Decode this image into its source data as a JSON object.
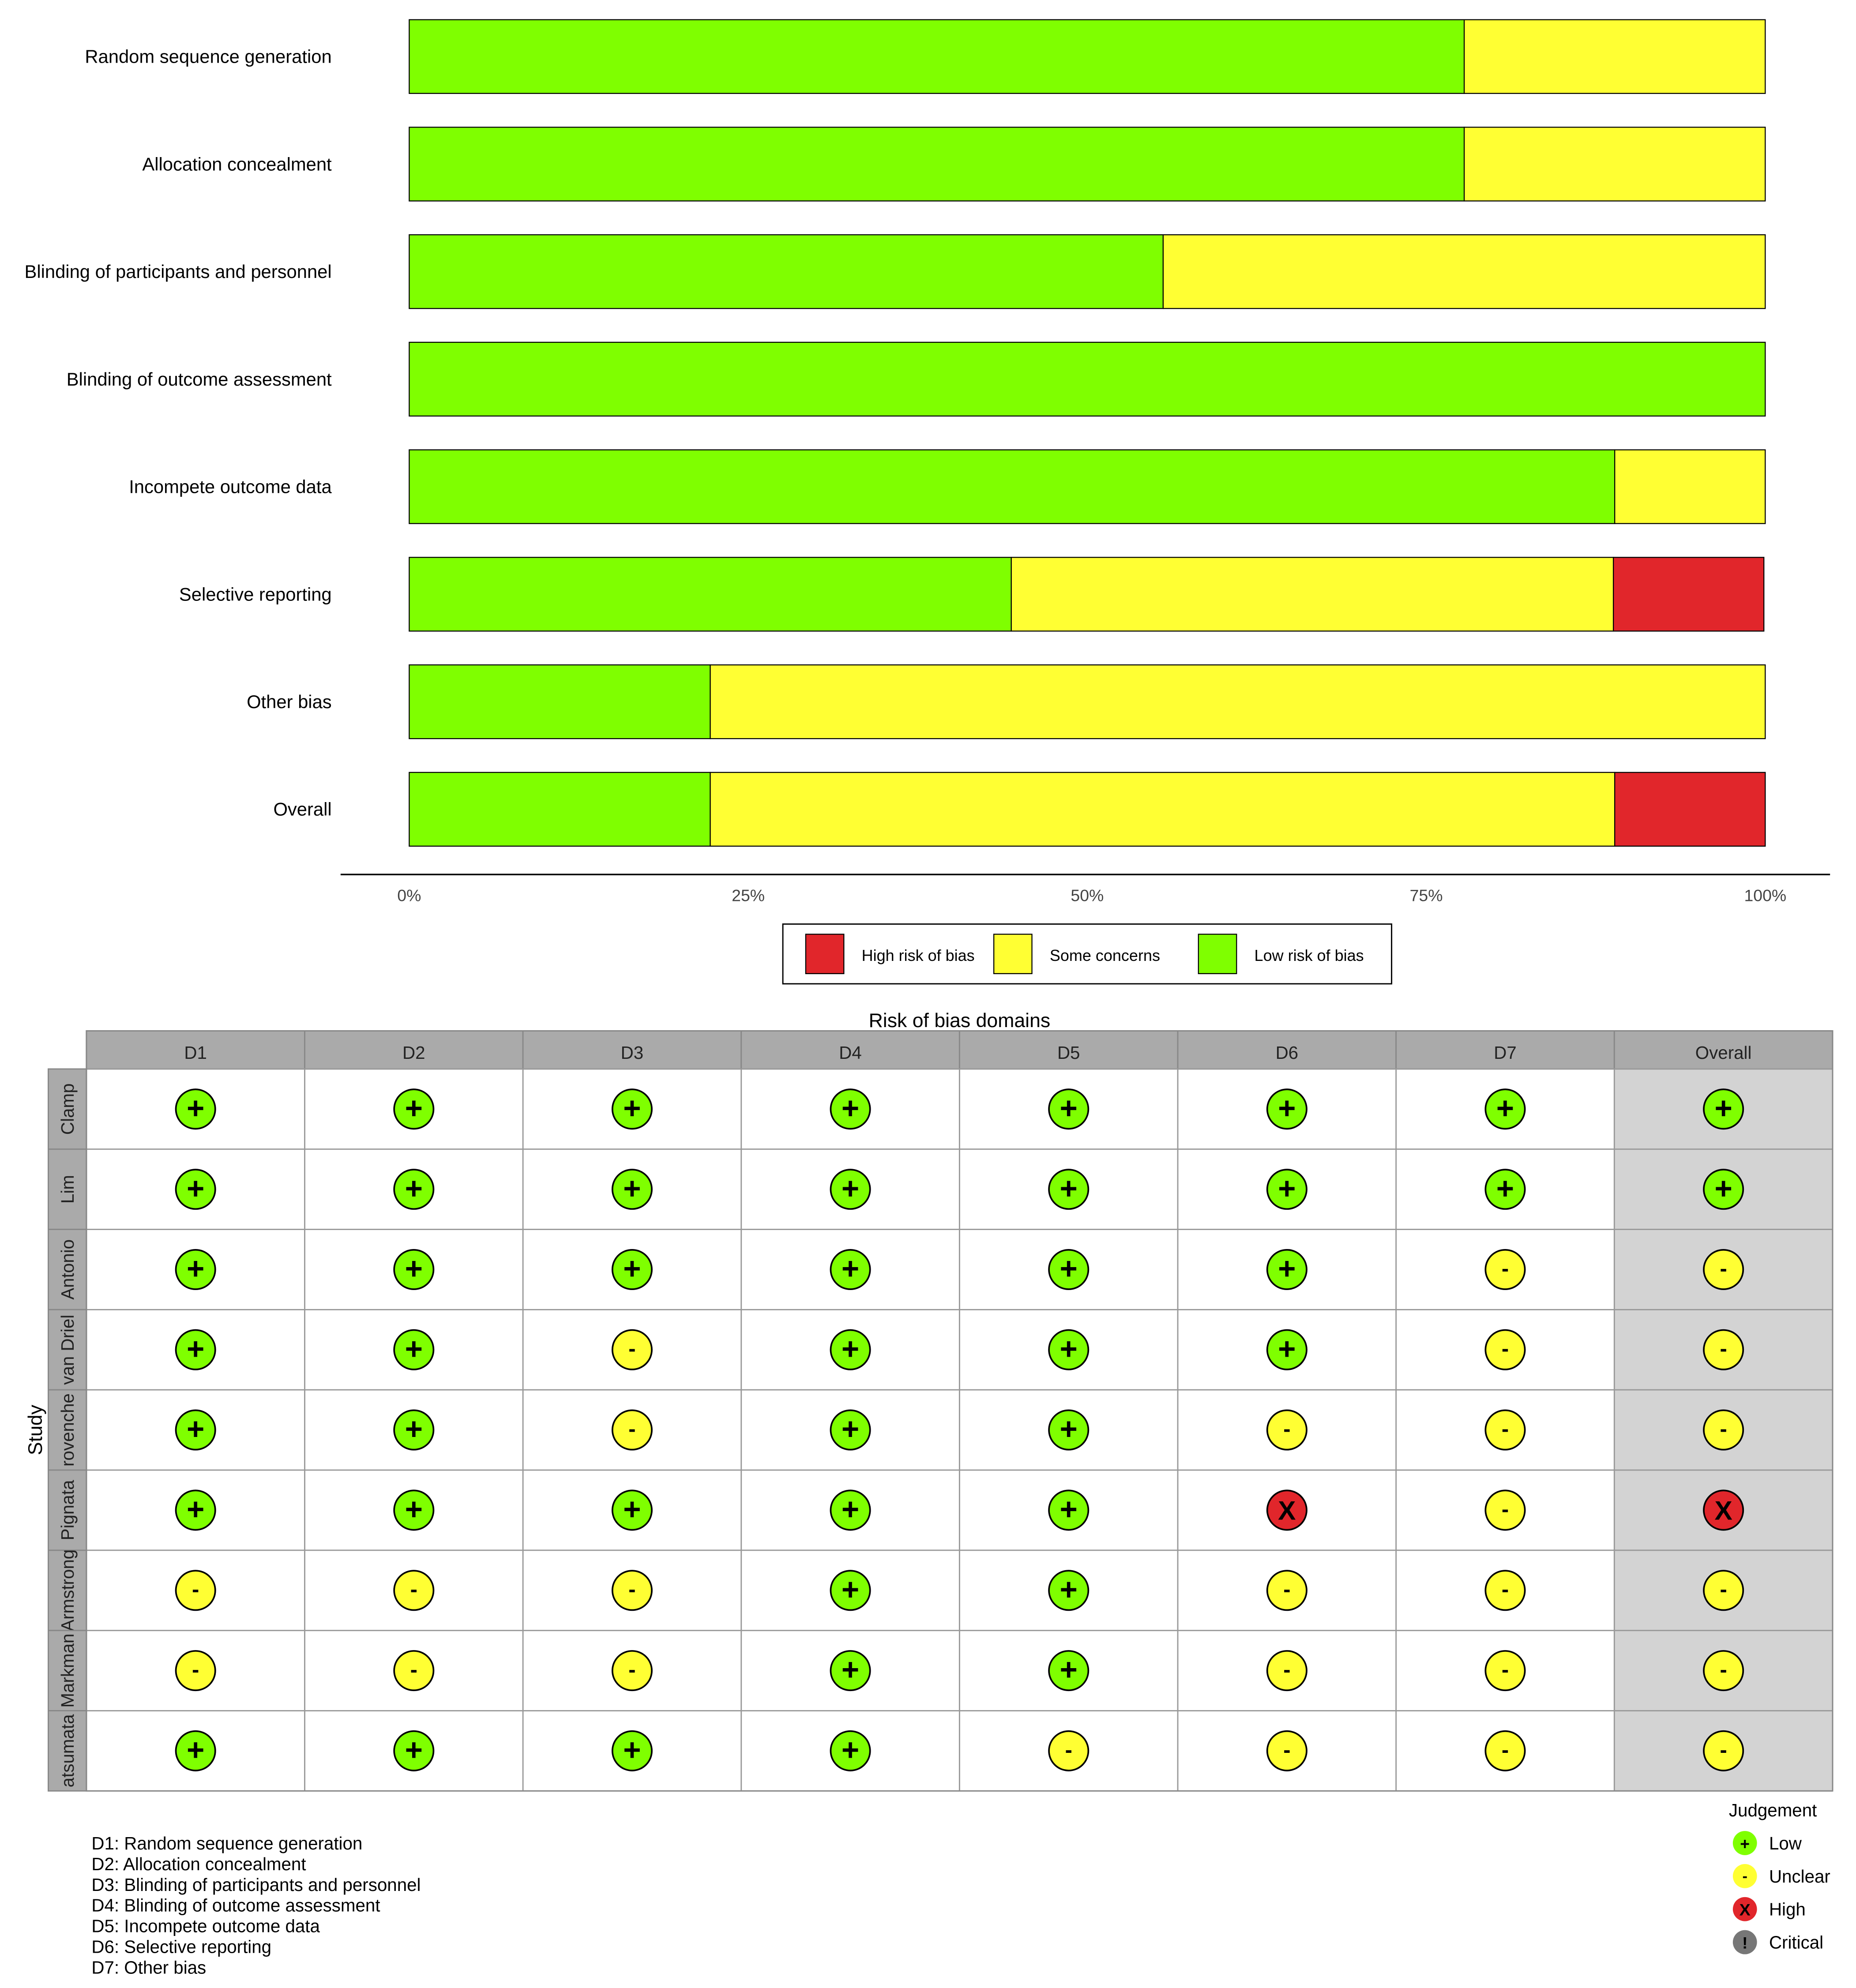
{
  "colors": {
    "low": "#7fff00",
    "some": "#ffff33",
    "high": "#e1262b",
    "critical": "#777777",
    "header_bg": "#aaaaaa",
    "overall_bg": "#d3d3d3",
    "grid": "#999999"
  },
  "chart_data": [
    {
      "type": "bar",
      "orientation": "horizontal",
      "stacked": true,
      "categories": [
        "Random sequence generation",
        "Allocation concealment",
        "Blinding of participants and personnel",
        "Blinding of outcome assessment",
        "Incompete outcome data",
        "Selective reporting",
        "Other bias",
        "Overall"
      ],
      "series": [
        {
          "name": "Low risk of bias",
          "key": "low",
          "values": [
            77.8,
            77.8,
            55.6,
            100,
            88.9,
            44.4,
            22.2,
            22.2
          ]
        },
        {
          "name": "Some concerns",
          "key": "some",
          "values": [
            22.2,
            22.2,
            44.4,
            0,
            11.1,
            44.4,
            77.8,
            66.7
          ]
        },
        {
          "name": "High risk of bias",
          "key": "high",
          "values": [
            0,
            0,
            0,
            0,
            0,
            11.1,
            0,
            11.1
          ]
        }
      ],
      "x_ticks": [
        "0%",
        "25%",
        "50%",
        "75%",
        "100%"
      ],
      "xlim": [
        0,
        100
      ],
      "legend": {
        "position": "bottom",
        "items": [
          {
            "label": "High risk of bias",
            "key": "high"
          },
          {
            "label": "Some concerns",
            "key": "some"
          },
          {
            "label": "Low risk of bias",
            "key": "low"
          }
        ]
      }
    },
    {
      "type": "table",
      "title": "Risk of bias domains",
      "row_axis_label": "Study",
      "columns": [
        "D1",
        "D2",
        "D3",
        "D4",
        "D5",
        "D6",
        "D7",
        "Overall"
      ],
      "rows": [
        {
          "study": "Clamp",
          "judgements": [
            "low",
            "low",
            "low",
            "low",
            "low",
            "low",
            "low",
            "low"
          ]
        },
        {
          "study": "Lim",
          "judgements": [
            "low",
            "low",
            "low",
            "low",
            "low",
            "low",
            "low",
            "low"
          ]
        },
        {
          "study": "Antonio",
          "judgements": [
            "low",
            "low",
            "low",
            "low",
            "low",
            "low",
            "some",
            "some"
          ]
        },
        {
          "study": "van Driel",
          "judgements": [
            "low",
            "low",
            "some",
            "low",
            "low",
            "low",
            "some",
            "some"
          ]
        },
        {
          "study": "rovenche",
          "judgements": [
            "low",
            "low",
            "some",
            "low",
            "low",
            "some",
            "some",
            "some"
          ]
        },
        {
          "study": "Pignata",
          "judgements": [
            "low",
            "low",
            "low",
            "low",
            "low",
            "high",
            "some",
            "high"
          ]
        },
        {
          "study": "Armstrong",
          "judgements": [
            "some",
            "some",
            "some",
            "low",
            "low",
            "some",
            "some",
            "some"
          ]
        },
        {
          "study": "Markman",
          "judgements": [
            "some",
            "some",
            "some",
            "low",
            "low",
            "some",
            "some",
            "some"
          ]
        },
        {
          "study": "atsumata",
          "judgements": [
            "low",
            "low",
            "low",
            "low",
            "some",
            "some",
            "some",
            "some"
          ]
        }
      ],
      "symbols": {
        "low": "+",
        "some": "-",
        "high": "X",
        "critical": "!"
      },
      "domain_notes": [
        "D1: Random sequence generation",
        "D2: Allocation concealment",
        "D3: Blinding of participants and personnel",
        "D4: Blinding of outcome assessment",
        "D5: Incompete outcome data",
        "D6: Selective reporting",
        "D7: Other bias"
      ],
      "legend": {
        "title": "Judgement",
        "items": [
          {
            "label": "Low",
            "key": "low"
          },
          {
            "label": "Unclear",
            "key": "some"
          },
          {
            "label": "High",
            "key": "high"
          },
          {
            "label": "Critical",
            "key": "critical"
          }
        ]
      }
    }
  ]
}
